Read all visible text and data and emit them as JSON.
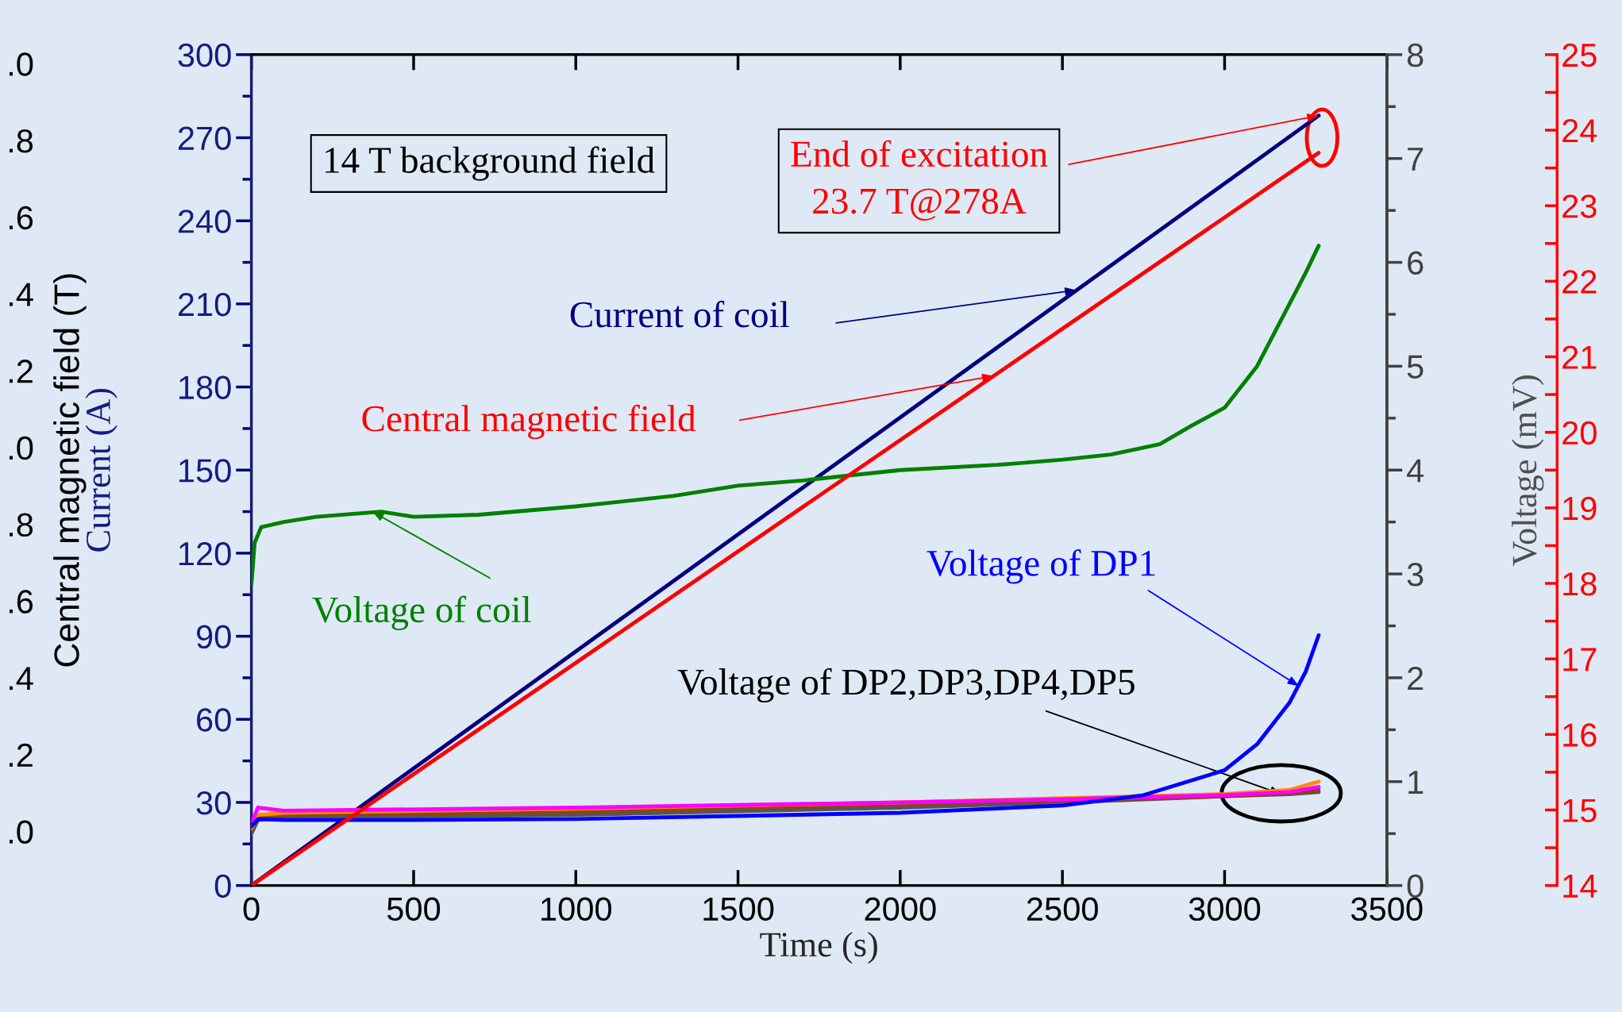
{
  "chart_data": {
    "type": "line",
    "xlabel": "Time (s)",
    "ylabel": "Current (A)",
    "y2label": "Voltage (mV)",
    "y3label": "Central magnetic field (T)",
    "xlim": [
      0,
      3500
    ],
    "xticks": [
      0,
      500,
      1000,
      1500,
      2000,
      2500,
      3000,
      3500
    ],
    "ylim": [
      0,
      300
    ],
    "yticks": [
      0,
      30,
      60,
      90,
      120,
      150,
      180,
      210,
      240,
      270,
      300
    ],
    "y2lim": [
      0,
      8
    ],
    "y2ticks": [
      0,
      1,
      2,
      3,
      4,
      5,
      6,
      7,
      8
    ],
    "y3lim": [
      14,
      25
    ],
    "y3ticks": [
      14,
      15,
      16,
      17,
      18,
      19,
      20,
      21,
      22,
      23,
      24,
      25
    ],
    "grid": false,
    "marker": "none",
    "line_style": "solid",
    "series": [
      {
        "color": "#000080",
        "x": [
          0,
          3290
        ],
        "values": [
          0,
          278
        ]
      },
      {
        "color": "#ff0000",
        "axis": "y3",
        "x": [
          0,
          3290
        ],
        "values": [
          14,
          23.7
        ]
      },
      {
        "color": "#008000",
        "axis": "y2",
        "x": [
          0,
          10,
          30,
          100,
          200,
          400,
          500,
          700,
          1000,
          1300,
          1500,
          1700,
          2000,
          2300,
          2500,
          2650,
          2800,
          2900,
          3000,
          3100,
          3200,
          3250,
          3290
        ],
        "values": [
          2.9,
          3.3,
          3.45,
          3.5,
          3.55,
          3.6,
          3.55,
          3.57,
          3.65,
          3.75,
          3.85,
          3.9,
          4.0,
          4.05,
          4.1,
          4.15,
          4.25,
          4.43,
          4.6,
          5.0,
          5.6,
          5.9,
          6.16
        ]
      },
      {
        "color": "#555555",
        "axis": "y2",
        "x": [
          0,
          20,
          100,
          1000,
          2000,
          2500,
          3000,
          3200,
          3290
        ],
        "values": [
          0.5,
          0.63,
          0.65,
          0.68,
          0.75,
          0.8,
          0.86,
          0.88,
          0.9
        ]
      },
      {
        "color": "#8b4513",
        "axis": "y2",
        "x": [
          0,
          20,
          100,
          1000,
          2000,
          2500,
          3000,
          3200,
          3290
        ],
        "values": [
          0.55,
          0.66,
          0.68,
          0.71,
          0.78,
          0.82,
          0.86,
          0.89,
          0.92
        ]
      },
      {
        "color": "#ff8c00",
        "axis": "y2",
        "x": [
          0,
          20,
          100,
          1000,
          2000,
          2500,
          3000,
          3200,
          3290
        ],
        "values": [
          0.55,
          0.68,
          0.7,
          0.74,
          0.8,
          0.84,
          0.88,
          0.92,
          1.0
        ]
      },
      {
        "color": "#ff00ff",
        "axis": "y2",
        "x": [
          0,
          20,
          100,
          1000,
          2000,
          2500,
          3000,
          3200,
          3290
        ],
        "values": [
          0.6,
          0.75,
          0.72,
          0.75,
          0.8,
          0.83,
          0.87,
          0.9,
          0.95
        ]
      },
      {
        "color": "#0000ff",
        "axis": "y2",
        "x": [
          0,
          20,
          100,
          500,
          1000,
          1500,
          2000,
          2500,
          2750,
          3000,
          3100,
          3200,
          3250,
          3290
        ],
        "values": [
          0.57,
          0.64,
          0.63,
          0.63,
          0.64,
          0.67,
          0.7,
          0.77,
          0.87,
          1.11,
          1.36,
          1.76,
          2.06,
          2.41
        ]
      }
    ],
    "annotations": [
      "14 T background field",
      {
        "text": "End of excitation\n23.7 T@278A",
        "x": 3290,
        "y": 278
      },
      {
        "text": "Current of coil",
        "x": 2543,
        "y": 215
      },
      {
        "text": "Central magnetic field",
        "x": 2288,
        "y": 184
      },
      {
        "text": "Voltage of coil",
        "x": 373,
        "y": 135
      },
      {
        "text": "Voltage of DP1",
        "x": 3229,
        "y": 72
      },
      {
        "text": "Voltage of DP2,DP3,DP4,DP5",
        "x": 3175,
        "y": 33
      },
      ".0",
      ".8",
      ".6",
      ".4",
      ".2",
      ".0",
      ".8",
      ".6",
      ".4",
      ".2",
      ".0"
    ]
  }
}
